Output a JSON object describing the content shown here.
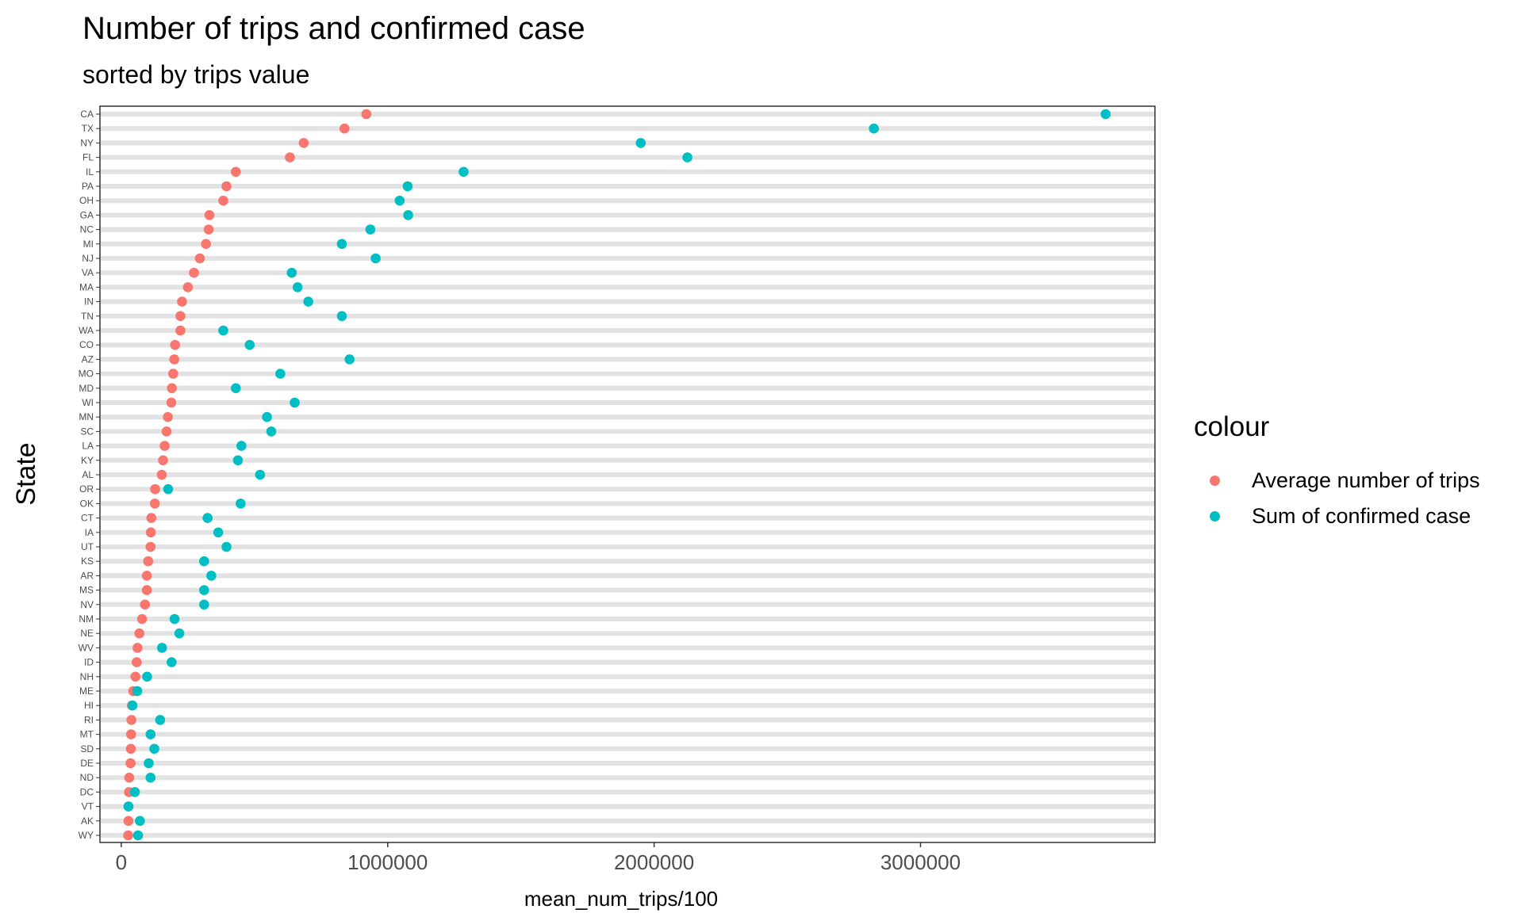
{
  "chart_data": {
    "type": "scatter",
    "title": "Number of trips and confirmed case",
    "subtitle": "sorted by trips value",
    "xlabel": "mean_num_trips/100",
    "ylabel": "State",
    "xlim": [
      -80000,
      3880000
    ],
    "x_ticks": [
      0,
      1000000,
      2000000,
      3000000
    ],
    "x_tick_labels": [
      "0",
      "1000000",
      "2000000",
      "3000000"
    ],
    "grid": "horizontal",
    "legend": {
      "title": "colour",
      "position": "right"
    },
    "categories": [
      "CA",
      "TX",
      "NY",
      "FL",
      "IL",
      "PA",
      "OH",
      "GA",
      "NC",
      "MI",
      "NJ",
      "VA",
      "MA",
      "IN",
      "TN",
      "WA",
      "CO",
      "AZ",
      "MO",
      "MD",
      "WI",
      "MN",
      "SC",
      "LA",
      "KY",
      "AL",
      "OR",
      "OK",
      "CT",
      "IA",
      "UT",
      "KS",
      "AR",
      "MS",
      "NV",
      "NM",
      "NE",
      "WV",
      "ID",
      "NH",
      "ME",
      "HI",
      "RI",
      "MT",
      "SD",
      "DE",
      "ND",
      "DC",
      "VT",
      "AK",
      "WY"
    ],
    "series": [
      {
        "name": "Average number of trips",
        "color": "#F8766D",
        "values": [
          920000,
          838000,
          685000,
          633000,
          430000,
          395000,
          383000,
          331000,
          328000,
          318000,
          295000,
          273000,
          250000,
          228000,
          222000,
          222000,
          202000,
          199000,
          195000,
          190000,
          188000,
          175000,
          170000,
          163000,
          157000,
          152000,
          127000,
          126000,
          113000,
          111000,
          110000,
          101000,
          96000,
          96000,
          89000,
          78000,
          68000,
          61000,
          58000,
          53000,
          45000,
          40000,
          38000,
          37000,
          36000,
          35000,
          30000,
          29000,
          27000,
          27000,
          26000
        ]
      },
      {
        "name": "Sum of confirmed case",
        "color": "#00BFC4",
        "values": [
          3695000,
          2825000,
          1950000,
          2125000,
          1285000,
          1075000,
          1045000,
          1077000,
          935000,
          828000,
          955000,
          640000,
          662000,
          702000,
          828000,
          383000,
          482000,
          857000,
          597000,
          430000,
          651000,
          547000,
          563000,
          451000,
          438000,
          521000,
          176000,
          448000,
          324000,
          364000,
          395000,
          311000,
          338000,
          311000,
          311000,
          200000,
          218000,
          153000,
          189000,
          97000,
          60000,
          42000,
          146000,
          110000,
          124000,
          103000,
          110000,
          51000,
          27000,
          70000,
          63000
        ]
      }
    ]
  }
}
